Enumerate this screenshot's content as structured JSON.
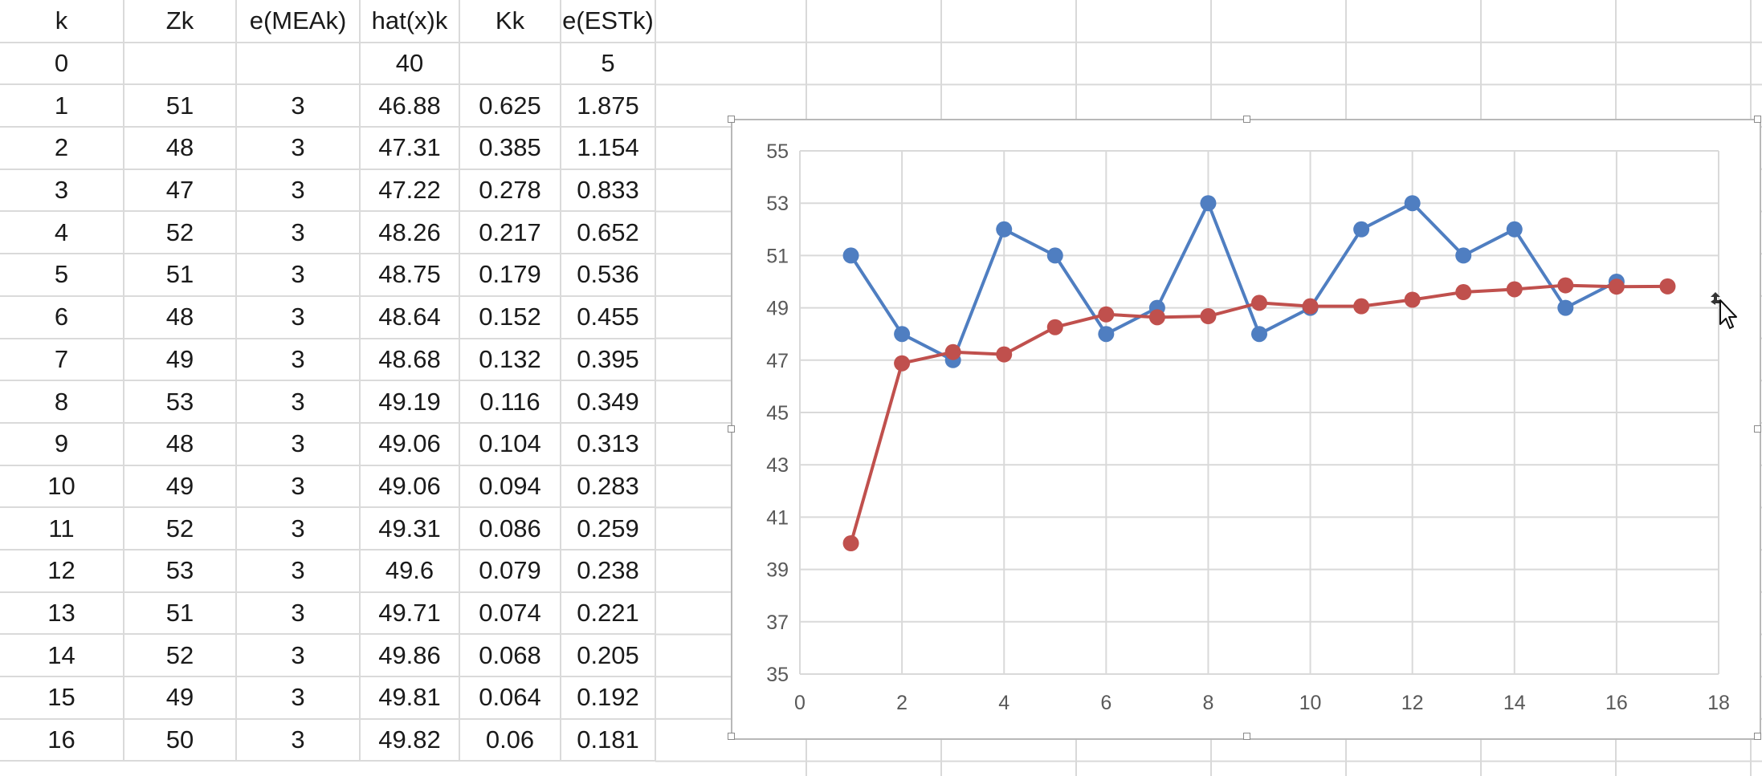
{
  "spreadsheet": {
    "headers": [
      "k",
      "Zk",
      "e(MEAk)",
      "hat(x)k",
      "Kk",
      "e(ESTk)"
    ],
    "rows": [
      [
        "0",
        "",
        "",
        "40",
        "",
        "5"
      ],
      [
        "1",
        "51",
        "3",
        "46.88",
        "0.625",
        "1.875"
      ],
      [
        "2",
        "48",
        "3",
        "47.31",
        "0.385",
        "1.154"
      ],
      [
        "3",
        "47",
        "3",
        "47.22",
        "0.278",
        "0.833"
      ],
      [
        "4",
        "52",
        "3",
        "48.26",
        "0.217",
        "0.652"
      ],
      [
        "5",
        "51",
        "3",
        "48.75",
        "0.179",
        "0.536"
      ],
      [
        "6",
        "48",
        "3",
        "48.64",
        "0.152",
        "0.455"
      ],
      [
        "7",
        "49",
        "3",
        "48.68",
        "0.132",
        "0.395"
      ],
      [
        "8",
        "53",
        "3",
        "49.19",
        "0.116",
        "0.349"
      ],
      [
        "9",
        "48",
        "3",
        "49.06",
        "0.104",
        "0.313"
      ],
      [
        "10",
        "49",
        "3",
        "49.06",
        "0.094",
        "0.283"
      ],
      [
        "11",
        "52",
        "3",
        "49.31",
        "0.086",
        "0.259"
      ],
      [
        "12",
        "53",
        "3",
        "49.6",
        "0.079",
        "0.238"
      ],
      [
        "13",
        "51",
        "3",
        "49.71",
        "0.074",
        "0.221"
      ],
      [
        "14",
        "52",
        "3",
        "49.86",
        "0.068",
        "0.205"
      ],
      [
        "15",
        "49",
        "3",
        "49.81",
        "0.064",
        "0.192"
      ],
      [
        "16",
        "50",
        "3",
        "49.82",
        "0.06",
        "0.181"
      ]
    ]
  },
  "chart_data": {
    "type": "line",
    "title": "",
    "xlabel": "",
    "ylabel": "",
    "xlim": [
      0,
      18
    ],
    "ylim": [
      35,
      55
    ],
    "xticks": [
      0,
      2,
      4,
      6,
      8,
      10,
      12,
      14,
      16,
      18
    ],
    "yticks": [
      35,
      37,
      39,
      41,
      43,
      45,
      47,
      49,
      51,
      53,
      55
    ],
    "grid": true,
    "legend": "none",
    "series": [
      {
        "color": "#4f7ec1",
        "x": [
          1,
          2,
          3,
          4,
          5,
          6,
          7,
          8,
          9,
          10,
          11,
          12,
          13,
          14,
          15,
          16
        ],
        "y": [
          51,
          48,
          47,
          52,
          51,
          48,
          49,
          53,
          48,
          49,
          52,
          53,
          51,
          52,
          49,
          50
        ]
      },
      {
        "color": "#c0504d",
        "x": [
          1,
          2,
          3,
          4,
          5,
          6,
          7,
          8,
          9,
          10,
          11,
          12,
          13,
          14,
          15,
          16,
          17
        ],
        "y": [
          40,
          46.88,
          47.31,
          47.22,
          48.26,
          48.75,
          48.64,
          48.68,
          49.19,
          49.06,
          49.06,
          49.31,
          49.6,
          49.71,
          49.86,
          49.81,
          49.82
        ]
      }
    ]
  },
  "colors": {
    "gridline": "#d9d9d9",
    "chart_gridline": "#d9d9d9",
    "axis_text": "#595959"
  },
  "icons": {
    "cursor": "move-cursor-icon"
  }
}
